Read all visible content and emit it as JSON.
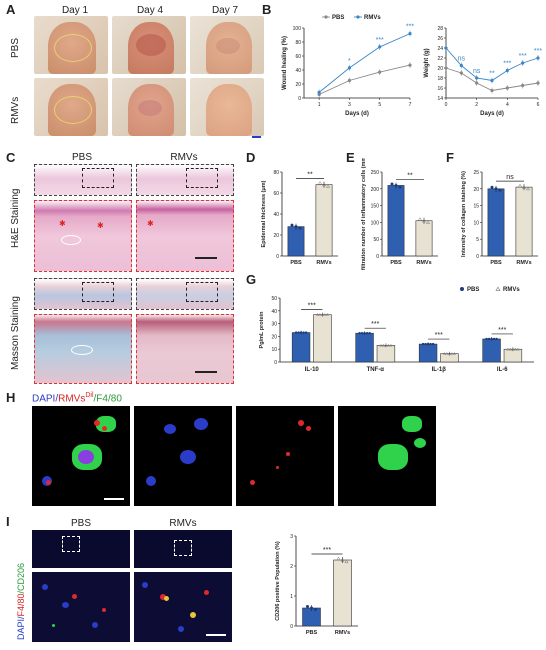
{
  "panels": {
    "A": "A",
    "B": "B",
    "C": "C",
    "D": "D",
    "E": "E",
    "F": "F",
    "G": "G",
    "H": "H",
    "I": "I"
  },
  "panelA": {
    "days": [
      "Day 1",
      "Day 4",
      "Day 7"
    ],
    "rows": [
      "PBS",
      "RMVs"
    ]
  },
  "panelC": {
    "cols": [
      "PBS",
      "RMVs"
    ],
    "rows": [
      "H&E Staining",
      "Masson Staining"
    ]
  },
  "panelH": {
    "label_dapi": "DAPI/",
    "label_rmvs": "RMVs",
    "label_dil": "Dil",
    "label_f480": "/F4/80"
  },
  "panelI": {
    "cols": [
      "PBS",
      "RMVs"
    ],
    "label_dapi": "DAPI/",
    "label_f480": "F4/80",
    "label_cd206": "/CD206"
  },
  "colors": {
    "pbs": "#888888",
    "rmvs": "#3a86c8",
    "bar_blue": "#2f5fb0",
    "bar_beige": "#e8e2d2",
    "sig_blue": "#3a86c8"
  },
  "chart_data": [
    {
      "id": "B1",
      "type": "line",
      "xlabel": "Days (d)",
      "ylabel": "Wound healing (%)",
      "xlim": [
        0,
        7
      ],
      "ylim": [
        0,
        100
      ],
      "xticks": [
        1,
        3,
        5,
        7
      ],
      "yticks": [
        0,
        20,
        40,
        60,
        80,
        100
      ],
      "x": [
        1,
        3,
        5,
        7
      ],
      "series": [
        {
          "name": "PBS",
          "values": [
            5,
            25,
            37,
            47
          ]
        },
        {
          "name": "RMVs",
          "values": [
            8,
            43,
            73,
            92
          ]
        }
      ],
      "significance": [
        "",
        "*",
        "***",
        "***"
      ]
    },
    {
      "id": "B2",
      "type": "line",
      "xlabel": "Days (d)",
      "ylabel": "Weight (g)",
      "xlim": [
        0,
        6
      ],
      "ylim": [
        14,
        28
      ],
      "xticks": [
        0,
        2,
        4,
        6
      ],
      "yticks": [
        14,
        16,
        18,
        20,
        22,
        24,
        26,
        28
      ],
      "x": [
        0,
        1,
        2,
        3,
        4,
        5,
        6
      ],
      "series": [
        {
          "name": "PBS",
          "values": [
            20,
            19,
            17,
            15.5,
            16,
            16.5,
            17
          ]
        },
        {
          "name": "RMVs",
          "values": [
            24,
            20.5,
            18,
            17.5,
            19.5,
            21,
            22
          ]
        }
      ],
      "significance": [
        "",
        "ns",
        "ns",
        "**",
        "***",
        "***",
        "***"
      ]
    },
    {
      "id": "D",
      "type": "bar",
      "ylabel": "Epidermal thickness (μm)",
      "categories": [
        "PBS",
        "RMVs"
      ],
      "values": [
        28,
        68
      ],
      "ylim": [
        0,
        80
      ],
      "yticks": [
        0,
        20,
        40,
        60,
        80
      ],
      "significance": "**"
    },
    {
      "id": "E",
      "type": "bar",
      "ylabel": "Infiltration number of inflammatory cells (mm²)",
      "categories": [
        "PBS",
        "RMVs"
      ],
      "values": [
        210,
        105
      ],
      "ylim": [
        0,
        250
      ],
      "yticks": [
        0,
        50,
        100,
        150,
        200,
        250
      ],
      "significance": "**"
    },
    {
      "id": "F",
      "type": "bar",
      "ylabel": "Intensity of collagen staining (%)",
      "categories": [
        "PBS",
        "RMVs"
      ],
      "values": [
        20,
        20.5
      ],
      "ylim": [
        0,
        25
      ],
      "yticks": [
        0,
        5,
        10,
        15,
        20,
        25
      ],
      "significance": "ns"
    },
    {
      "id": "G",
      "type": "bar",
      "ylabel": "Pg/mL protein",
      "categories": [
        "IL-10",
        "TNF-α",
        "IL-1β",
        "IL-6"
      ],
      "series": [
        {
          "name": "PBS",
          "values": [
            23,
            22.5,
            14,
            18
          ]
        },
        {
          "name": "RMVs",
          "values": [
            37,
            13,
            6.5,
            10
          ]
        }
      ],
      "ylim": [
        0,
        50
      ],
      "yticks": [
        0,
        10,
        20,
        30,
        40,
        50
      ],
      "significance": [
        "***",
        "***",
        "***",
        "***"
      ]
    },
    {
      "id": "I",
      "type": "bar",
      "ylabel": "CD206 positive Population (%)",
      "categories": [
        "PBS",
        "RMVs"
      ],
      "values": [
        0.6,
        2.2
      ],
      "ylim": [
        0,
        3
      ],
      "yticks": [
        0,
        1,
        2,
        3
      ],
      "significance": "***"
    }
  ]
}
